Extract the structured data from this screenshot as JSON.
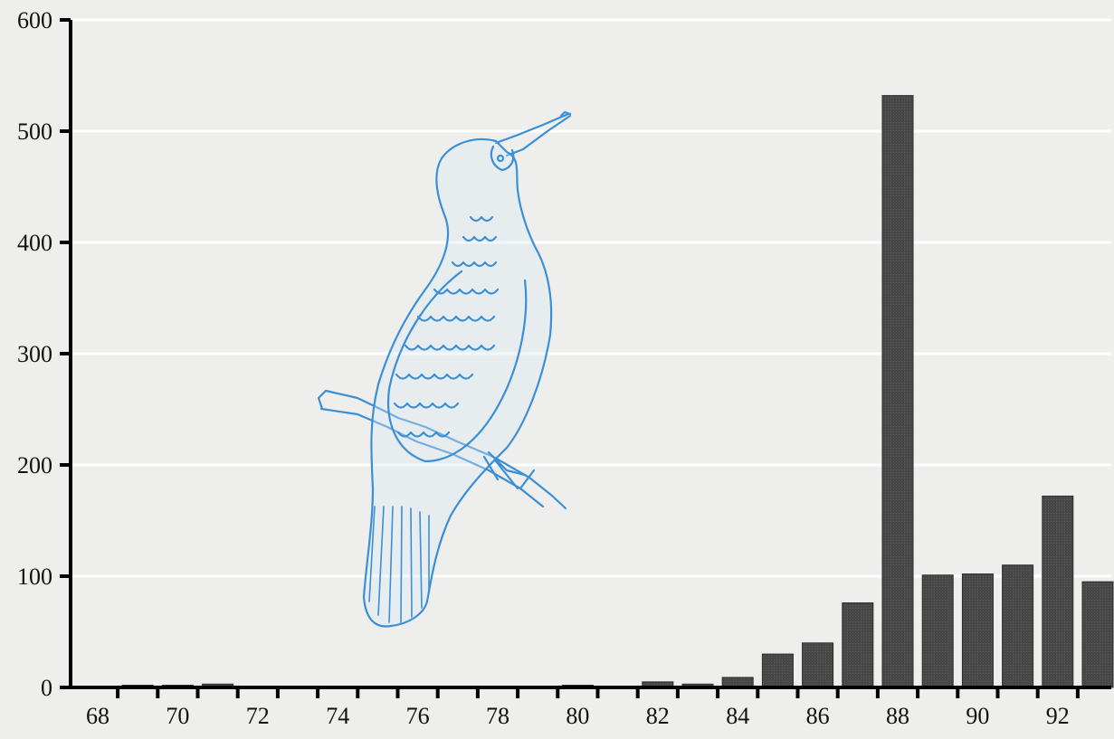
{
  "chart_data": {
    "type": "bar",
    "categories": [
      "68",
      "69",
      "70",
      "71",
      "72",
      "73",
      "74",
      "75",
      "76",
      "77",
      "78",
      "79",
      "80",
      "81",
      "82",
      "83",
      "84",
      "85",
      "86",
      "87",
      "88",
      "89",
      "90",
      "91",
      "92",
      "93"
    ],
    "x_tick_labels": [
      "68",
      "70",
      "72",
      "74",
      "76",
      "78",
      "80",
      "82",
      "84",
      "86",
      "88",
      "90",
      "92"
    ],
    "y_tick_labels": [
      "0",
      "100",
      "200",
      "300",
      "400",
      "500",
      "600"
    ],
    "values": [
      1,
      2,
      2,
      3,
      0,
      0,
      0,
      0,
      0,
      0,
      0,
      0,
      2,
      0,
      5,
      3,
      9,
      30,
      40,
      76,
      532,
      101,
      102,
      110,
      172,
      95
    ],
    "ylim": [
      0,
      600
    ],
    "title": "",
    "xlabel": "",
    "ylabel": "",
    "grid": true,
    "colors": {
      "background": "#eeeeec",
      "bar": "#3d3d3d",
      "grid": "#ffffff",
      "axis": "#000000",
      "illustration": "#3b8fd6"
    },
    "illustration": "cormorant-perched-on-branch"
  }
}
